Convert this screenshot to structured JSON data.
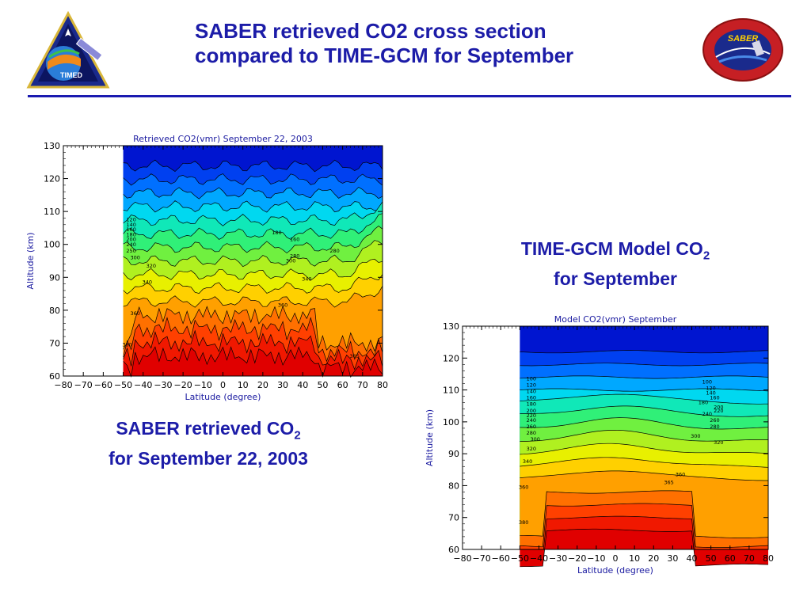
{
  "slide": {
    "title_line1": "SABER retrieved CO2 cross section",
    "title_line2": "compared to TIME-GCM for September",
    "left_logo_text": "TIMED",
    "right_logo_text": "SABER",
    "accent_color": "#1c1ca8",
    "left_caption": {
      "main": "SABER retrieved CO",
      "sub": "2",
      "line2": "for September 22, 2003"
    },
    "right_caption": {
      "main": "TIME-GCM Model CO",
      "sub": "2",
      "line2": "for September"
    }
  },
  "chart_data": [
    {
      "type": "heatmap",
      "title": "Retrieved CO2(vmr) September 22, 2003",
      "xlabel": "Latitude (degree)",
      "ylabel": "Altitude (km)",
      "xlim": [
        -80,
        80
      ],
      "ylim": [
        60,
        130
      ],
      "x_ticks": [
        -80,
        -70,
        -60,
        -50,
        -40,
        -30,
        -20,
        -10,
        0,
        10,
        20,
        30,
        40,
        50,
        60,
        70,
        80
      ],
      "y_ticks": [
        60,
        70,
        80,
        90,
        100,
        110,
        120,
        130
      ],
      "data_coverage_lat": [
        -50,
        80
      ],
      "color_scale": [
        "#0015d0",
        "#0040f0",
        "#0070ff",
        "#00a8ff",
        "#00d8f0",
        "#10e8b8",
        "#30f078",
        "#70f040",
        "#b0f020",
        "#e8f000",
        "#ffd000",
        "#ffa000",
        "#ff7000",
        "#ff4000",
        "#f01800",
        "#e00000"
      ],
      "contour_labels": [
        {
          "text": "120",
          "lat": -46,
          "alt": 107
        },
        {
          "text": "140",
          "lat": -46,
          "alt": 105.5
        },
        {
          "text": "160",
          "lat": -46,
          "alt": 104
        },
        {
          "text": "180",
          "lat": -46,
          "alt": 102.5
        },
        {
          "text": "200",
          "lat": -46,
          "alt": 101
        },
        {
          "text": "240",
          "lat": -46,
          "alt": 99.5
        },
        {
          "text": "250",
          "lat": -46,
          "alt": 97.5
        },
        {
          "text": "300",
          "lat": -44,
          "alt": 95.5
        },
        {
          "text": "320",
          "lat": -36,
          "alt": 93
        },
        {
          "text": "340",
          "lat": -38,
          "alt": 88
        },
        {
          "text": "360",
          "lat": -44,
          "alt": 78.5
        },
        {
          "text": "180",
          "lat": 27,
          "alt": 103
        },
        {
          "text": "160",
          "lat": 36,
          "alt": 101
        },
        {
          "text": "280",
          "lat": 36,
          "alt": 96
        },
        {
          "text": "300",
          "lat": 34,
          "alt": 94.5
        },
        {
          "text": "340",
          "lat": 42,
          "alt": 89
        },
        {
          "text": "280",
          "lat": 56,
          "alt": 97.5
        },
        {
          "text": "360",
          "lat": 30,
          "alt": 81
        },
        {
          "text": "380",
          "lat": -48,
          "alt": 69
        },
        {
          "text": "365",
          "lat": 66,
          "alt": 65.5
        }
      ]
    },
    {
      "type": "heatmap",
      "title": "Model CO2(vmr) September",
      "xlabel": "Latitude (degree)",
      "ylabel": "Altitude (km)",
      "xlim": [
        -80,
        80
      ],
      "ylim": [
        60,
        130
      ],
      "x_ticks": [
        -80,
        -70,
        -60,
        -50,
        -40,
        -30,
        -20,
        -10,
        0,
        10,
        20,
        30,
        40,
        50,
        60,
        70,
        80
      ],
      "y_ticks": [
        60,
        70,
        80,
        90,
        100,
        110,
        120,
        130
      ],
      "data_coverage_lat": [
        -50,
        80
      ],
      "color_scale": [
        "#0015d0",
        "#0040f0",
        "#0070ff",
        "#00a8ff",
        "#00d8f0",
        "#10e8b8",
        "#30f078",
        "#70f040",
        "#b0f020",
        "#e8f000",
        "#ffd000",
        "#ffa000",
        "#ff7000",
        "#ff4000",
        "#f01800",
        "#e00000"
      ],
      "contour_labels": [
        {
          "text": "100",
          "lat": -44,
          "alt": 113
        },
        {
          "text": "120",
          "lat": -44,
          "alt": 111
        },
        {
          "text": "140",
          "lat": -44,
          "alt": 109
        },
        {
          "text": "160",
          "lat": -44,
          "alt": 107
        },
        {
          "text": "180",
          "lat": -44,
          "alt": 105
        },
        {
          "text": "200",
          "lat": -44,
          "alt": 103
        },
        {
          "text": "220",
          "lat": -44,
          "alt": 101.5
        },
        {
          "text": "240",
          "lat": -44,
          "alt": 100
        },
        {
          "text": "260",
          "lat": -44,
          "alt": 98
        },
        {
          "text": "280",
          "lat": -44,
          "alt": 96
        },
        {
          "text": "300",
          "lat": -42,
          "alt": 94
        },
        {
          "text": "320",
          "lat": -44,
          "alt": 91
        },
        {
          "text": "340",
          "lat": -46,
          "alt": 87
        },
        {
          "text": "360",
          "lat": -48,
          "alt": 79
        },
        {
          "text": "380",
          "lat": -48,
          "alt": 68
        },
        {
          "text": "100",
          "lat": 48,
          "alt": 112
        },
        {
          "text": "120",
          "lat": 50,
          "alt": 110
        },
        {
          "text": "140",
          "lat": 50,
          "alt": 108.5
        },
        {
          "text": "160",
          "lat": 52,
          "alt": 107
        },
        {
          "text": "180",
          "lat": 46,
          "alt": 105.5
        },
        {
          "text": "200",
          "lat": 54,
          "alt": 104
        },
        {
          "text": "220",
          "lat": 54,
          "alt": 103
        },
        {
          "text": "240",
          "lat": 48,
          "alt": 102
        },
        {
          "text": "260",
          "lat": 52,
          "alt": 100
        },
        {
          "text": "280",
          "lat": 52,
          "alt": 98
        },
        {
          "text": "300",
          "lat": 42,
          "alt": 95
        },
        {
          "text": "320",
          "lat": 54,
          "alt": 93
        },
        {
          "text": "360",
          "lat": 34,
          "alt": 83
        },
        {
          "text": "365",
          "lat": 28,
          "alt": 80.5
        }
      ]
    }
  ]
}
